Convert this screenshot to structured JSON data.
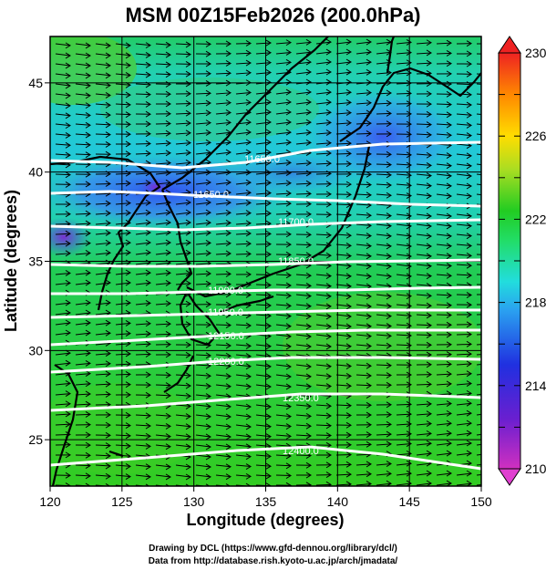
{
  "title": "MSM 00Z15Feb2026 (200.0hPa)",
  "axes": {
    "xlabel": "Longitude (degrees)",
    "ylabel": "Latitude  (degrees)",
    "xticks": [
      "120",
      "125",
      "130",
      "135",
      "140",
      "145",
      "150"
    ],
    "yticks": [
      "25",
      "30",
      "35",
      "40",
      "45"
    ],
    "xlim": [
      120,
      150
    ],
    "ylim": [
      22.4,
      47.6
    ]
  },
  "colorbar": {
    "min": 210,
    "max": 230,
    "labels": [
      "230",
      "226",
      "222",
      "218",
      "214",
      "210"
    ]
  },
  "contours": {
    "labels": [
      "11650.0",
      "11650.0",
      "11700.0",
      "11850.0",
      "11900.0",
      "11950.0",
      "12150.0",
      "12200.0",
      "12350.0",
      "12400.0"
    ]
  },
  "credits": {
    "line1": "Drawing by DCL (https://www.gfd-dennou.org/library/dcl/)",
    "line2": "Data from http://database.rish.kyoto-u.ac.jp/arch/jmadata/"
  },
  "colors": {
    "field_green": "#22cc22",
    "field_cyan": "#22cccc",
    "field_blue": "#3a5cf0",
    "field_purple": "#8a2fd0",
    "contour": "#ffffff",
    "vector": "#000000"
  },
  "icons": [
    "colorbar-upper-triangle",
    "colorbar-lower-triangle"
  ]
}
